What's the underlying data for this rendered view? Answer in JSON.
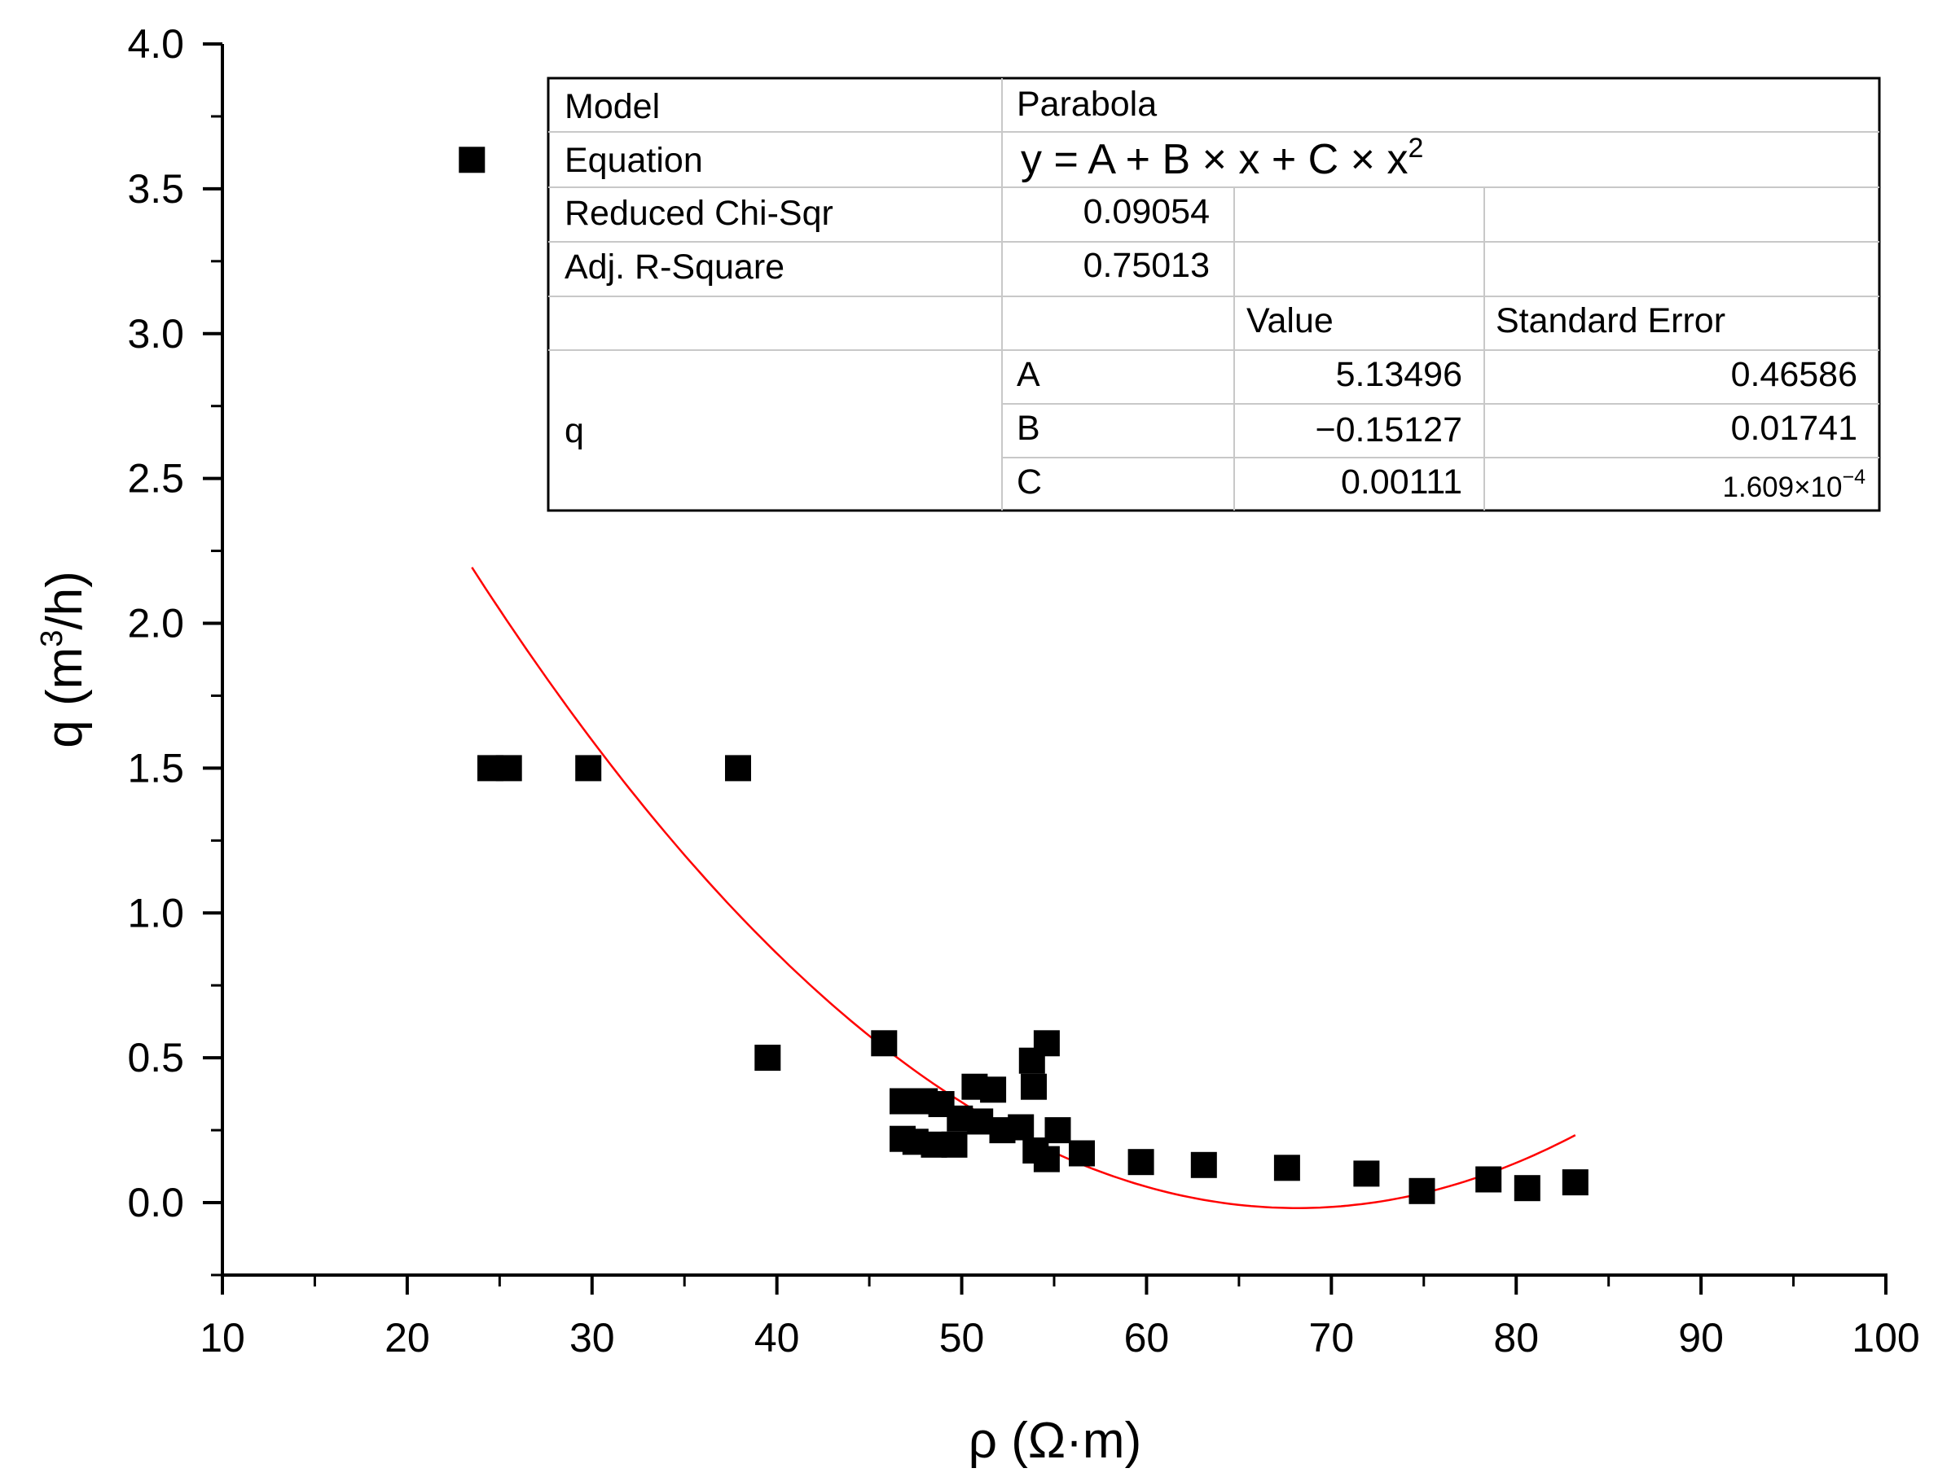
{
  "chart_data": {
    "type": "scatter",
    "xlabel": "ρ (Ω·m)",
    "ylabel": {
      "prefix": "q (m",
      "sup": "3",
      "suffix": "/h)"
    },
    "xlim": [
      10,
      100
    ],
    "ylim": [
      -0.25,
      4.0
    ],
    "x_ticks": [
      "10",
      "20",
      "30",
      "40",
      "50",
      "60",
      "70",
      "80",
      "90",
      "100"
    ],
    "y_ticks": [
      "0.0",
      "0.5",
      "1.0",
      "1.5",
      "2.0",
      "2.5",
      "3.0",
      "3.5",
      "4.0"
    ],
    "marker_color": "#000000",
    "fit_color": "#ff0000",
    "points": [
      {
        "x": 23.5,
        "y": 3.6
      },
      {
        "x": 24.5,
        "y": 1.5
      },
      {
        "x": 25.5,
        "y": 1.5
      },
      {
        "x": 29.8,
        "y": 1.5
      },
      {
        "x": 37.9,
        "y": 1.5
      },
      {
        "x": 39.5,
        "y": 0.5
      },
      {
        "x": 45.8,
        "y": 0.55
      },
      {
        "x": 46.8,
        "y": 0.35
      },
      {
        "x": 46.8,
        "y": 0.22
      },
      {
        "x": 47.5,
        "y": 0.21
      },
      {
        "x": 48.0,
        "y": 0.35
      },
      {
        "x": 48.5,
        "y": 0.2
      },
      {
        "x": 48.9,
        "y": 0.34
      },
      {
        "x": 49.6,
        "y": 0.2
      },
      {
        "x": 49.9,
        "y": 0.29
      },
      {
        "x": 50.7,
        "y": 0.4
      },
      {
        "x": 51.0,
        "y": 0.28
      },
      {
        "x": 51.7,
        "y": 0.39
      },
      {
        "x": 52.2,
        "y": 0.25
      },
      {
        "x": 53.2,
        "y": 0.26
      },
      {
        "x": 53.8,
        "y": 0.49
      },
      {
        "x": 53.9,
        "y": 0.4
      },
      {
        "x": 54.0,
        "y": 0.18
      },
      {
        "x": 54.6,
        "y": 0.55
      },
      {
        "x": 54.6,
        "y": 0.15
      },
      {
        "x": 55.2,
        "y": 0.25
      },
      {
        "x": 56.5,
        "y": 0.17
      },
      {
        "x": 59.7,
        "y": 0.14
      },
      {
        "x": 63.1,
        "y": 0.13
      },
      {
        "x": 67.6,
        "y": 0.12
      },
      {
        "x": 71.9,
        "y": 0.1
      },
      {
        "x": 74.9,
        "y": 0.04
      },
      {
        "x": 78.5,
        "y": 0.08
      },
      {
        "x": 80.6,
        "y": 0.05
      },
      {
        "x": 83.2,
        "y": 0.07
      }
    ],
    "fit": {
      "model": "parabola",
      "A": 5.13496,
      "B": -0.15127,
      "C": 0.00111,
      "x_range": [
        23.5,
        83.2
      ]
    }
  },
  "fit_table": {
    "model_label": "Model",
    "model_value": "Parabola",
    "equation_label": "Equation",
    "equation": {
      "text": "y = A + B × x + C × x",
      "sup": "2"
    },
    "chisq_label": "Reduced Chi-Sqr",
    "chisq_value": "0.09054",
    "adjr2_label": "Adj. R-Square",
    "adjr2_value": "0.75013",
    "value_header": "Value",
    "stderr_header": "Standard Error",
    "param_group": "q",
    "params": [
      {
        "name": "A",
        "value": "5.13496",
        "stderr": "0.46586"
      },
      {
        "name": "B",
        "value": "−0.15127",
        "stderr": "0.01741"
      },
      {
        "name": "C",
        "value": "0.00111",
        "stderr": "1.609×10",
        "stderr_sup": "−4"
      }
    ]
  }
}
